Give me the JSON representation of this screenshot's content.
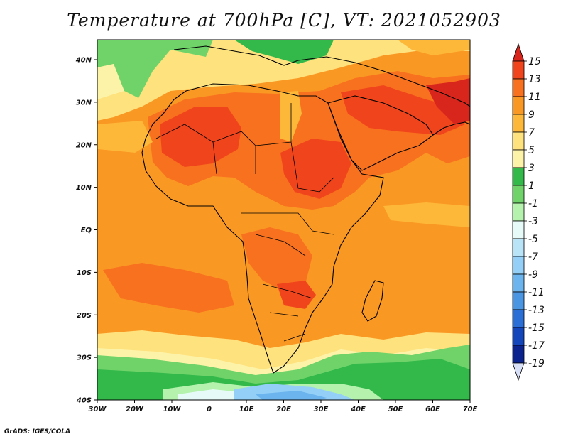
{
  "title": "Temperature at 700hPa [C], VT: 2021052903",
  "credit": "GrADS: IGES/COLA",
  "x_ticks": [
    "30W",
    "20W",
    "10W",
    "0",
    "10E",
    "20E",
    "30E",
    "40E",
    "50E",
    "60E",
    "70E"
  ],
  "y_ticks": [
    "40N",
    "30N",
    "20N",
    "10N",
    "EQ",
    "10S",
    "20S",
    "30S",
    "40S"
  ],
  "colorbar": {
    "labels": [
      "15",
      "13",
      "11",
      "9",
      "7",
      "5",
      "3",
      "1",
      "-1",
      "-3",
      "-5",
      "-7",
      "-9",
      "-11",
      "-13",
      "-15",
      "-17",
      "-19"
    ],
    "colors": [
      "#d9261c",
      "#f0441c",
      "#f8711e",
      "#fa9824",
      "#fdb83a",
      "#fee27e",
      "#fdf3a8",
      "#33b84a",
      "#6fd36a",
      "#b4f2ad",
      "#e6fbf7",
      "#b9e4f7",
      "#93cff6",
      "#6bb4ee",
      "#4b96e3",
      "#2a6fd6",
      "#1446bb",
      "#0b238e",
      "#d8e0f7"
    ]
  }
}
